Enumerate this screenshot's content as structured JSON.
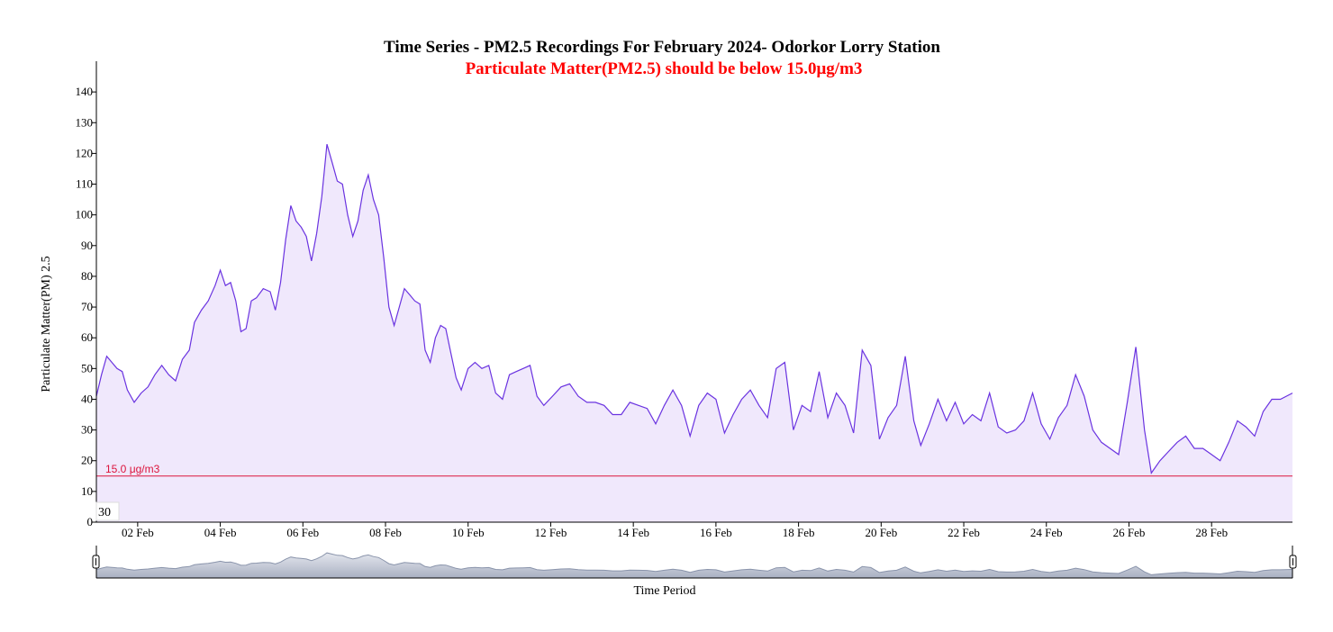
{
  "chart_data": {
    "type": "area",
    "title": "Time Series - PM2.5 Recordings For February 2024- Odorkor Lorry Station",
    "subtitle": "Particulate Matter(PM2.5) should be below 15.0μg/m3",
    "xlabel": "Time Period",
    "ylabel": "Particulate Matter(PM) 2.5",
    "ylim": [
      0,
      150
    ],
    "xlim": [
      "2024-02-01",
      "2024-02-29T23:00"
    ],
    "y_ticks": [
      "0",
      "10",
      "20",
      "30",
      "40",
      "50",
      "60",
      "70",
      "80",
      "90",
      "100",
      "110",
      "120",
      "130",
      "140"
    ],
    "x_ticks": [
      "02 Feb",
      "04 Feb",
      "06 Feb",
      "08 Feb",
      "10 Feb",
      "12 Feb",
      "14 Feb",
      "16 Feb",
      "18 Feb",
      "20 Feb",
      "22 Feb",
      "24 Feb",
      "26 Feb",
      "28 Feb"
    ],
    "threshold": {
      "value": 15.0,
      "label": "15.0 μg/m3",
      "color": "#dc143c"
    },
    "tooltip_value": "30",
    "line_color": "#6a33e0",
    "fill_color": "#f0e8fc",
    "brush_fill_color": "#a9b0c2",
    "series": [
      {
        "points": [
          [
            "2024-02-01T00:00",
            41
          ],
          [
            "2024-02-01T03:00",
            48
          ],
          [
            "2024-02-01T06:00",
            54
          ],
          [
            "2024-02-01T09:00",
            52
          ],
          [
            "2024-02-01T12:00",
            50
          ],
          [
            "2024-02-01T15:00",
            49
          ],
          [
            "2024-02-01T18:00",
            43
          ],
          [
            "2024-02-01T22:00",
            39
          ],
          [
            "2024-02-02T02:00",
            42
          ],
          [
            "2024-02-02T06:00",
            44
          ],
          [
            "2024-02-02T10:00",
            48
          ],
          [
            "2024-02-02T14:00",
            51
          ],
          [
            "2024-02-02T18:00",
            48
          ],
          [
            "2024-02-02T22:00",
            46
          ],
          [
            "2024-02-03T02:00",
            53
          ],
          [
            "2024-02-03T06:00",
            56
          ],
          [
            "2024-02-03T09:00",
            65
          ],
          [
            "2024-02-03T13:00",
            69
          ],
          [
            "2024-02-03T17:00",
            72
          ],
          [
            "2024-02-03T21:00",
            77
          ],
          [
            "2024-02-04T00:00",
            82
          ],
          [
            "2024-02-04T03:00",
            77
          ],
          [
            "2024-02-04T06:00",
            78
          ],
          [
            "2024-02-04T09:00",
            72
          ],
          [
            "2024-02-04T12:00",
            62
          ],
          [
            "2024-02-04T15:00",
            63
          ],
          [
            "2024-02-04T18:00",
            72
          ],
          [
            "2024-02-04T21:00",
            73
          ],
          [
            "2024-02-05T01:00",
            76
          ],
          [
            "2024-02-05T05:00",
            75
          ],
          [
            "2024-02-05T08:00",
            69
          ],
          [
            "2024-02-05T11:00",
            78
          ],
          [
            "2024-02-05T14:00",
            92
          ],
          [
            "2024-02-05T17:00",
            103
          ],
          [
            "2024-02-05T20:00",
            98
          ],
          [
            "2024-02-05T23:00",
            96
          ],
          [
            "2024-02-06T02:00",
            93
          ],
          [
            "2024-02-06T05:00",
            85
          ],
          [
            "2024-02-06T08:00",
            94
          ],
          [
            "2024-02-06T11:00",
            106
          ],
          [
            "2024-02-06T14:00",
            123
          ],
          [
            "2024-02-06T17:00",
            117
          ],
          [
            "2024-02-06T20:00",
            111
          ],
          [
            "2024-02-06T23:00",
            110
          ],
          [
            "2024-02-07T02:00",
            100
          ],
          [
            "2024-02-07T05:00",
            93
          ],
          [
            "2024-02-07T08:00",
            98
          ],
          [
            "2024-02-07T11:00",
            108
          ],
          [
            "2024-02-07T14:00",
            113
          ],
          [
            "2024-02-07T17:00",
            105
          ],
          [
            "2024-02-07T20:00",
            100
          ],
          [
            "2024-02-07T23:00",
            86
          ],
          [
            "2024-02-08T02:00",
            70
          ],
          [
            "2024-02-08T05:00",
            64
          ],
          [
            "2024-02-08T08:00",
            70
          ],
          [
            "2024-02-08T11:00",
            76
          ],
          [
            "2024-02-08T14:00",
            74
          ],
          [
            "2024-02-08T17:00",
            72
          ],
          [
            "2024-02-08T20:00",
            71
          ],
          [
            "2024-02-08T23:00",
            56
          ],
          [
            "2024-02-09T02:00",
            52
          ],
          [
            "2024-02-09T05:00",
            60
          ],
          [
            "2024-02-09T08:00",
            64
          ],
          [
            "2024-02-09T11:00",
            63
          ],
          [
            "2024-02-09T14:00",
            55
          ],
          [
            "2024-02-09T17:00",
            47
          ],
          [
            "2024-02-09T20:00",
            43
          ],
          [
            "2024-02-10T00:00",
            50
          ],
          [
            "2024-02-10T04:00",
            52
          ],
          [
            "2024-02-10T08:00",
            50
          ],
          [
            "2024-02-10T12:00",
            51
          ],
          [
            "2024-02-10T16:00",
            42
          ],
          [
            "2024-02-10T20:00",
            40
          ],
          [
            "2024-02-11T00:00",
            48
          ],
          [
            "2024-02-11T04:00",
            49
          ],
          [
            "2024-02-11T08:00",
            50
          ],
          [
            "2024-02-11T12:00",
            51
          ],
          [
            "2024-02-11T16:00",
            41
          ],
          [
            "2024-02-11T20:00",
            38
          ],
          [
            "2024-02-12T01:00",
            41
          ],
          [
            "2024-02-12T06:00",
            44
          ],
          [
            "2024-02-12T11:00",
            45
          ],
          [
            "2024-02-12T16:00",
            41
          ],
          [
            "2024-02-12T21:00",
            39
          ],
          [
            "2024-02-13T02:00",
            39
          ],
          [
            "2024-02-13T07:00",
            38
          ],
          [
            "2024-02-13T12:00",
            35
          ],
          [
            "2024-02-13T17:00",
            35
          ],
          [
            "2024-02-13T22:00",
            39
          ],
          [
            "2024-02-14T03:00",
            38
          ],
          [
            "2024-02-14T08:00",
            37
          ],
          [
            "2024-02-14T13:00",
            32
          ],
          [
            "2024-02-14T18:00",
            38
          ],
          [
            "2024-02-14T23:00",
            43
          ],
          [
            "2024-02-15T04:00",
            38
          ],
          [
            "2024-02-15T09:00",
            28
          ],
          [
            "2024-02-15T14:00",
            38
          ],
          [
            "2024-02-15T19:00",
            42
          ],
          [
            "2024-02-16T00:00",
            40
          ],
          [
            "2024-02-16T05:00",
            29
          ],
          [
            "2024-02-16T10:00",
            35
          ],
          [
            "2024-02-16T15:00",
            40
          ],
          [
            "2024-02-16T20:00",
            43
          ],
          [
            "2024-02-17T01:00",
            38
          ],
          [
            "2024-02-17T06:00",
            34
          ],
          [
            "2024-02-17T11:00",
            50
          ],
          [
            "2024-02-17T16:00",
            52
          ],
          [
            "2024-02-17T21:00",
            30
          ],
          [
            "2024-02-18T02:00",
            38
          ],
          [
            "2024-02-18T07:00",
            36
          ],
          [
            "2024-02-18T12:00",
            49
          ],
          [
            "2024-02-18T17:00",
            34
          ],
          [
            "2024-02-18T22:00",
            42
          ],
          [
            "2024-02-19T03:00",
            38
          ],
          [
            "2024-02-19T08:00",
            29
          ],
          [
            "2024-02-19T13:00",
            56
          ],
          [
            "2024-02-19T18:00",
            51
          ],
          [
            "2024-02-19T23:00",
            27
          ],
          [
            "2024-02-20T04:00",
            34
          ],
          [
            "2024-02-20T09:00",
            38
          ],
          [
            "2024-02-20T14:00",
            54
          ],
          [
            "2024-02-20T19:00",
            33
          ],
          [
            "2024-02-20T23:00",
            25
          ],
          [
            "2024-02-21T04:00",
            32
          ],
          [
            "2024-02-21T09:00",
            40
          ],
          [
            "2024-02-21T14:00",
            33
          ],
          [
            "2024-02-21T19:00",
            39
          ],
          [
            "2024-02-22T00:00",
            32
          ],
          [
            "2024-02-22T05:00",
            35
          ],
          [
            "2024-02-22T10:00",
            33
          ],
          [
            "2024-02-22T15:00",
            42
          ],
          [
            "2024-02-22T20:00",
            31
          ],
          [
            "2024-02-23T01:00",
            29
          ],
          [
            "2024-02-23T06:00",
            30
          ],
          [
            "2024-02-23T11:00",
            33
          ],
          [
            "2024-02-23T16:00",
            42
          ],
          [
            "2024-02-23T21:00",
            32
          ],
          [
            "2024-02-24T02:00",
            27
          ],
          [
            "2024-02-24T07:00",
            34
          ],
          [
            "2024-02-24T12:00",
            38
          ],
          [
            "2024-02-24T17:00",
            48
          ],
          [
            "2024-02-24T22:00",
            41
          ],
          [
            "2024-02-25T03:00",
            30
          ],
          [
            "2024-02-25T08:00",
            26
          ],
          [
            "2024-02-25T13:00",
            24
          ],
          [
            "2024-02-25T18:00",
            22
          ],
          [
            "2024-02-25T23:00",
            39
          ],
          [
            "2024-02-26T04:00",
            57
          ],
          [
            "2024-02-26T09:00",
            30
          ],
          [
            "2024-02-26T13:00",
            16
          ],
          [
            "2024-02-26T18:00",
            20
          ],
          [
            "2024-02-26T23:00",
            23
          ],
          [
            "2024-02-27T04:00",
            26
          ],
          [
            "2024-02-27T09:00",
            28
          ],
          [
            "2024-02-27T14:00",
            24
          ],
          [
            "2024-02-27T19:00",
            24
          ],
          [
            "2024-02-28T00:00",
            22
          ],
          [
            "2024-02-28T05:00",
            20
          ],
          [
            "2024-02-28T10:00",
            26
          ],
          [
            "2024-02-28T15:00",
            33
          ],
          [
            "2024-02-28T20:00",
            31
          ],
          [
            "2024-02-29T01:00",
            28
          ],
          [
            "2024-02-29T06:00",
            36
          ],
          [
            "2024-02-29T11:00",
            40
          ],
          [
            "2024-02-29T16:00",
            40
          ],
          [
            "2024-02-29T23:00",
            42
          ]
        ]
      }
    ]
  }
}
